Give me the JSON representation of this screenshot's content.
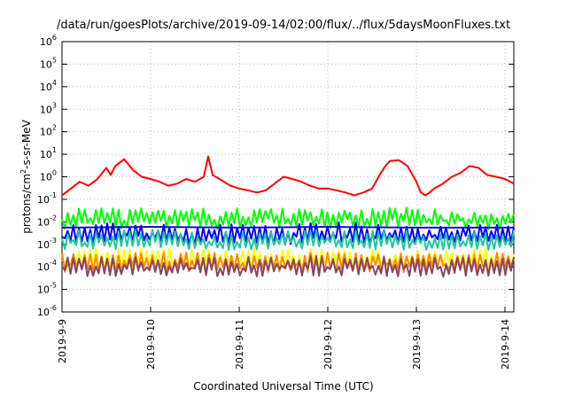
{
  "chart_data": {
    "type": "line",
    "title": "/data/run/goesPlots/archive/2019-09-14/02:00/flux/../flux/5daysMoonFluxes.txt",
    "xlabel": "Coordinated Universal Time (UTC)",
    "ylabel": {
      "prefix": "protons/cm",
      "sup": "2",
      "suffix": "-s-sr-MeV"
    },
    "y_scale": "log",
    "ylim": [
      1e-06,
      1000000.0
    ],
    "y_ticks": [
      {
        "exp": "-6",
        "value": 1e-06
      },
      {
        "exp": "-5",
        "value": 1e-05
      },
      {
        "exp": "-4",
        "value": 0.0001
      },
      {
        "exp": "-3",
        "value": 0.001
      },
      {
        "exp": "-2",
        "value": 0.01
      },
      {
        "exp": "-1",
        "value": 0.1
      },
      {
        "exp": "0",
        "value": 1
      },
      {
        "exp": "1",
        "value": 10
      },
      {
        "exp": "2",
        "value": 100
      },
      {
        "exp": "3",
        "value": 1000
      },
      {
        "exp": "4",
        "value": 10000
      },
      {
        "exp": "5",
        "value": 100000
      },
      {
        "exp": "6",
        "value": 1000000
      }
    ],
    "x_ticks": [
      "2019-9-9",
      "2019-9-10",
      "2019-9-11",
      "2019-9-12",
      "2019-9-13",
      "2019-9-14"
    ],
    "x_units": "days after 2019-9-9 00:00 UTC",
    "xlim": [
      0,
      5.1
    ],
    "grid": true,
    "legend": "none",
    "series": [
      {
        "color": "#ff0000",
        "x": [
          0,
          0.1,
          0.2,
          0.3,
          0.4,
          0.5,
          0.55,
          0.6,
          0.7,
          0.75,
          0.8,
          0.9,
          1.0,
          1.1,
          1.2,
          1.3,
          1.4,
          1.5,
          1.6,
          1.65,
          1.7,
          1.8,
          1.9,
          2.0,
          2.1,
          2.2,
          2.3,
          2.4,
          2.5,
          2.6,
          2.7,
          2.8,
          2.9,
          3.0,
          3.1,
          3.2,
          3.3,
          3.4,
          3.5,
          3.6,
          3.65,
          3.7,
          3.8,
          3.9,
          4.0,
          4.05,
          4.1,
          4.15,
          4.2,
          4.3,
          4.4,
          4.5,
          4.6,
          4.7,
          4.8,
          4.9,
          5.0,
          5.1
        ],
        "y": [
          0.15,
          0.3,
          0.6,
          0.4,
          0.8,
          2.5,
          1.2,
          3.0,
          6.0,
          3.5,
          2.0,
          1.0,
          0.8,
          0.6,
          0.4,
          0.5,
          0.8,
          0.6,
          1.0,
          8.0,
          1.2,
          0.7,
          0.4,
          0.3,
          0.25,
          0.2,
          0.25,
          0.5,
          1.0,
          0.8,
          0.6,
          0.4,
          0.3,
          0.3,
          0.25,
          0.2,
          0.15,
          0.2,
          0.3,
          1.5,
          3.0,
          5.0,
          5.5,
          3.0,
          0.6,
          0.2,
          0.15,
          0.2,
          0.3,
          0.5,
          1.0,
          1.5,
          3.0,
          2.5,
          1.2,
          1.0,
          0.8,
          0.5
        ]
      },
      {
        "color": "#00ff00",
        "x": [
          0,
          0.25,
          0.5,
          0.75,
          1.0,
          1.25,
          1.5,
          1.75,
          2.0,
          2.25,
          2.5,
          2.75,
          3.0,
          3.25,
          3.5,
          3.75,
          4.0,
          4.25,
          4.5,
          4.75,
          5.0,
          5.1
        ],
        "y": [
          0.009,
          0.015,
          0.012,
          0.01,
          0.014,
          0.011,
          0.013,
          0.01,
          0.012,
          0.015,
          0.011,
          0.013,
          0.01,
          0.014,
          0.011,
          0.013,
          0.012,
          0.011,
          0.012,
          0.01,
          0.01,
          0.01
        ],
        "spiky": true
      },
      {
        "color": "#0000ff",
        "x": [
          0,
          0.5,
          1.0,
          1.5,
          2.0,
          2.5,
          3.0,
          3.5,
          4.0,
          4.5,
          5.0,
          5.1
        ],
        "y": [
          0.002,
          0.0025,
          0.003,
          0.002,
          0.0025,
          0.002,
          0.003,
          0.0025,
          0.002,
          0.0025,
          0.0025,
          0.002
        ],
        "spiky": true
      },
      {
        "color": "#1010cc",
        "x": [
          0,
          1.0,
          2.0,
          3.0,
          4.0,
          5.1
        ],
        "y": [
          0.0055,
          0.006,
          0.0055,
          0.006,
          0.0055,
          0.0055
        ]
      },
      {
        "color": "#20c8a0",
        "x": [
          0,
          1.0,
          2.0,
          3.0,
          4.0,
          5.1
        ],
        "y": [
          0.0012,
          0.0013,
          0.0012,
          0.0013,
          0.0012,
          0.0012
        ],
        "spiky": true
      },
      {
        "color": "#ffff00",
        "x": [
          0,
          1.0,
          2.0,
          3.0,
          4.0,
          5.1
        ],
        "y": [
          0.00018,
          0.0002,
          0.00018,
          0.0002,
          0.00018,
          0.00018
        ],
        "spiky": true
      },
      {
        "color": "#ff8800",
        "x": [
          0,
          1.0,
          2.0,
          3.0,
          4.0,
          5.1
        ],
        "y": [
          0.00012,
          0.00013,
          0.00012,
          0.00013,
          0.00012,
          0.00012
        ],
        "spiky": true
      },
      {
        "color": "#884466",
        "x": [
          0,
          1.0,
          2.0,
          3.0,
          4.0,
          5.1
        ],
        "y": [
          8e-05,
          9e-05,
          8e-05,
          9e-05,
          8e-05,
          8e-05
        ],
        "spiky": true
      }
    ]
  }
}
